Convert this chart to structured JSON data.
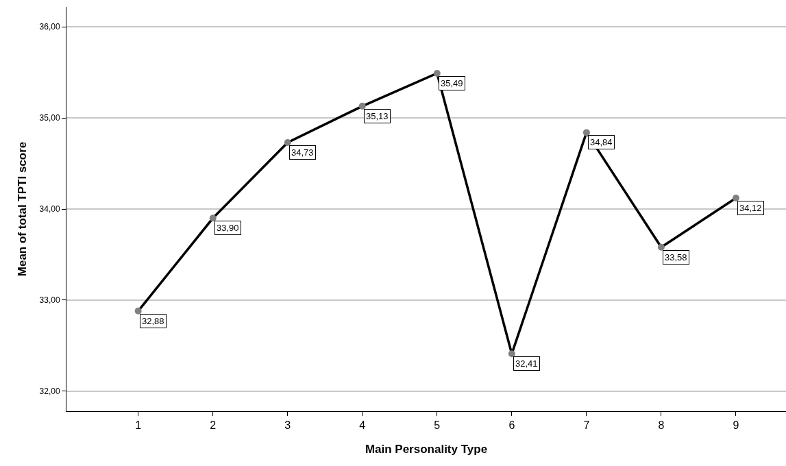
{
  "chart_data": {
    "type": "line",
    "xlabel": "Main Personality Type",
    "ylabel": "Mean of total TPTI score",
    "categories": [
      "1",
      "2",
      "3",
      "4",
      "5",
      "6",
      "7",
      "8",
      "9"
    ],
    "series": [
      {
        "color": "#000000",
        "values": [
          32.88,
          33.9,
          34.73,
          35.13,
          35.49,
          32.41,
          34.84,
          33.58,
          34.12
        ],
        "value_labels": [
          "32,88",
          "33,90",
          "34,73",
          "35,13",
          "35,49",
          "32,41",
          "34,84",
          "33,58",
          "34,12"
        ]
      }
    ],
    "ylim": [
      31.78,
      36.22
    ],
    "yticks": [
      {
        "value": 32,
        "label": "32,00"
      },
      {
        "value": 33,
        "label": "33,00"
      },
      {
        "value": 34,
        "label": "34,00"
      },
      {
        "value": 35,
        "label": "35,00"
      },
      {
        "value": 36,
        "label": "36,00"
      }
    ],
    "grid": "y",
    "legend": false,
    "marker": "circle",
    "line_style": "solid"
  }
}
